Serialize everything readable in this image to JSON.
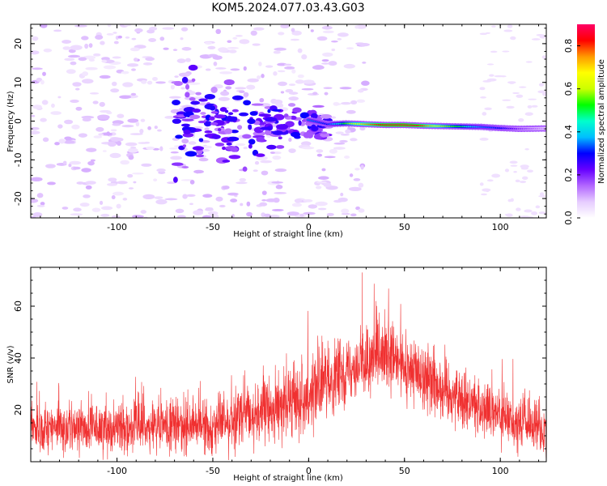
{
  "title": "KOM5.2024.077.03.43.G03",
  "chart_data": [
    {
      "type": "heatmap",
      "xlabel": "Height of straight line (km)",
      "ylabel": "Frequency (Hz)",
      "xlim": [
        -145,
        124
      ],
      "ylim": [
        -25,
        25
      ],
      "xticks": [
        "-100",
        "-50",
        "0",
        "50",
        "100"
      ],
      "yticks": [
        "-20",
        "-10",
        "0",
        "10",
        "20"
      ],
      "colorbar": {
        "label": "Normalized spectral amplitude",
        "ticks": [
          "0.0",
          "0.2",
          "0.4",
          "0.6",
          "0.8"
        ],
        "range": [
          0,
          0.9
        ],
        "colormap": [
          "#ffffff",
          "#e6ccff",
          "#b266ff",
          "#6600ff",
          "#0000ff",
          "#00bfff",
          "#00ffcc",
          "#00ff00",
          "#ccff00",
          "#ffff00",
          "#ff9900",
          "#ff0000",
          "#ff0066"
        ]
      },
      "ridge": [
        {
          "x": 0,
          "y": 0.3,
          "amp": 0.35
        },
        {
          "x": 10,
          "y": -0.8,
          "amp": 0.3
        },
        {
          "x": 20,
          "y": -0.6,
          "amp": 0.55
        },
        {
          "x": 30,
          "y": -0.8,
          "amp": 0.75
        },
        {
          "x": 40,
          "y": -1.0,
          "amp": 0.85
        },
        {
          "x": 50,
          "y": -1.0,
          "amp": 0.88
        },
        {
          "x": 60,
          "y": -1.2,
          "amp": 0.8
        },
        {
          "x": 70,
          "y": -1.3,
          "amp": 0.6
        },
        {
          "x": 80,
          "y": -1.4,
          "amp": 0.5
        },
        {
          "x": 90,
          "y": -1.5,
          "amp": 0.35
        },
        {
          "x": 100,
          "y": -1.8,
          "amp": 0.3
        },
        {
          "x": 110,
          "y": -2.0,
          "amp": 0.2
        },
        {
          "x": 124,
          "y": -1.9,
          "amp": 0.12
        }
      ]
    },
    {
      "type": "line",
      "xlabel": "Height of straight line (km)",
      "ylabel": "SNR (v/v)",
      "xlim": [
        -145,
        124
      ],
      "ylim": [
        0,
        75
      ],
      "xticks": [
        "-100",
        "-50",
        "0",
        "50",
        "100"
      ],
      "yticks": [
        "20",
        "40",
        "60"
      ],
      "color": "#f03030",
      "envelope": [
        {
          "x": -145,
          "mean": 13,
          "spread": 8
        },
        {
          "x": -100,
          "mean": 13,
          "spread": 8
        },
        {
          "x": -50,
          "mean": 14,
          "spread": 9
        },
        {
          "x": -20,
          "mean": 20,
          "spread": 10
        },
        {
          "x": 0,
          "mean": 26,
          "spread": 11
        },
        {
          "x": 20,
          "mean": 36,
          "spread": 11
        },
        {
          "x": 40,
          "mean": 40,
          "spread": 12
        },
        {
          "x": 60,
          "mean": 33,
          "spread": 11
        },
        {
          "x": 80,
          "mean": 24,
          "spread": 10
        },
        {
          "x": 100,
          "mean": 17,
          "spread": 9
        },
        {
          "x": 124,
          "mean": 12,
          "spread": 8
        }
      ],
      "peak": {
        "x": 28,
        "y": 73
      }
    }
  ]
}
